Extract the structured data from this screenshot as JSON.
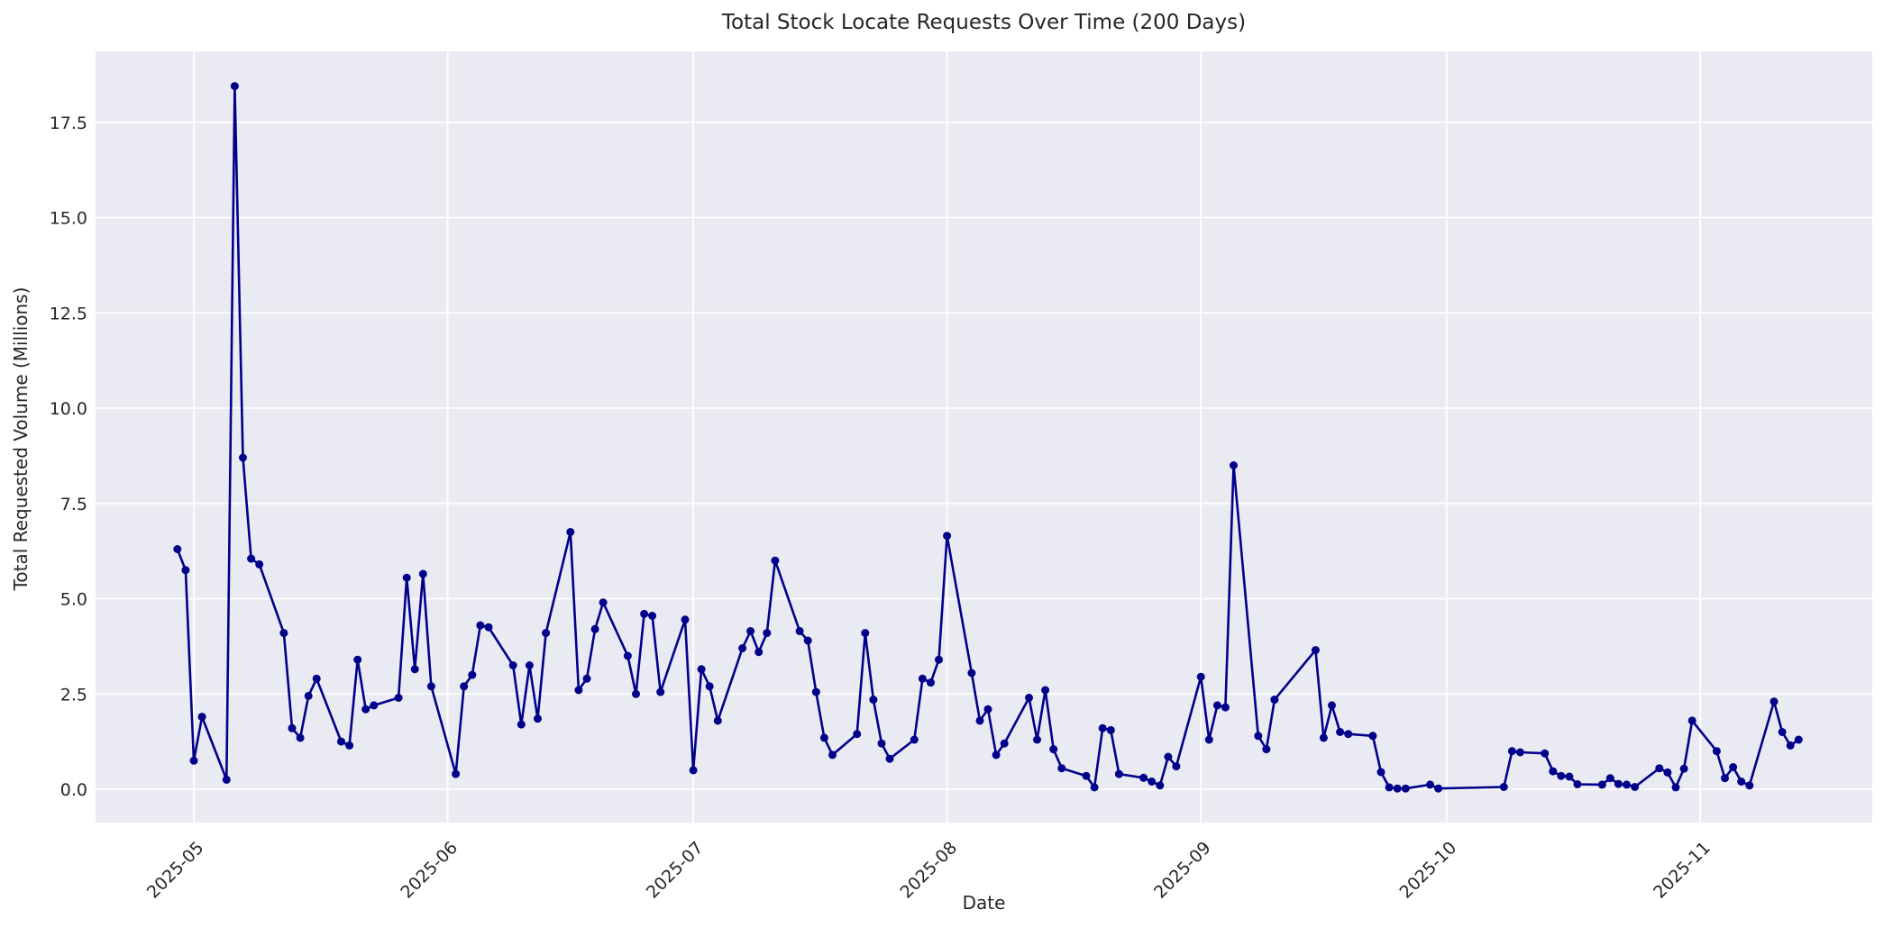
{
  "figure": {
    "background": "#ffffff",
    "title": "Total Stock Locate Requests Over Time (200 Days)",
    "xlabel": "Date",
    "ylabel": "Total Requested Volume (Millions)"
  },
  "chart_data": {
    "type": "line",
    "title": "Total Stock Locate Requests Over Time (200 Days)",
    "xlabel": "Date",
    "ylabel": "Total Requested Volume (Millions)",
    "legend": "none",
    "grid": true,
    "style": "seaborn-darkgrid",
    "colors": {
      "line": "#00008B",
      "marker": "#00008B",
      "axes_background": "#EAEAF2",
      "gridline": "#FFFFFF",
      "text": "#262626"
    },
    "ylim": [
      -0.9,
      19.4
    ],
    "xlim": [
      "2025-04-19",
      "2025-11-22"
    ],
    "y_ticks": [
      0.0,
      2.5,
      5.0,
      7.5,
      10.0,
      12.5,
      15.0,
      17.5
    ],
    "x_ticks": [
      {
        "date": "2025-05-01",
        "label": "2025-05"
      },
      {
        "date": "2025-06-01",
        "label": "2025-06"
      },
      {
        "date": "2025-07-01",
        "label": "2025-07"
      },
      {
        "date": "2025-08-01",
        "label": "2025-08"
      },
      {
        "date": "2025-09-01",
        "label": "2025-09"
      },
      {
        "date": "2025-10-01",
        "label": "2025-10"
      },
      {
        "date": "2025-11-01",
        "label": "2025-11"
      }
    ],
    "series": [
      {
        "name": "total-locate-requests",
        "points": [
          [
            "2025-04-29",
            6.3
          ],
          [
            "2025-04-30",
            5.75
          ],
          [
            "2025-05-01",
            0.75
          ],
          [
            "2025-05-02",
            1.9
          ],
          [
            "2025-05-05",
            0.25
          ],
          [
            "2025-05-06",
            18.45
          ],
          [
            "2025-05-07",
            8.7
          ],
          [
            "2025-05-08",
            6.05
          ],
          [
            "2025-05-09",
            5.9
          ],
          [
            "2025-05-12",
            4.1
          ],
          [
            "2025-05-13",
            1.6
          ],
          [
            "2025-05-14",
            1.35
          ],
          [
            "2025-05-15",
            2.45
          ],
          [
            "2025-05-16",
            2.9
          ],
          [
            "2025-05-19",
            1.25
          ],
          [
            "2025-05-20",
            1.15
          ],
          [
            "2025-05-21",
            3.4
          ],
          [
            "2025-05-22",
            2.1
          ],
          [
            "2025-05-23",
            2.2
          ],
          [
            "2025-05-26",
            2.4
          ],
          [
            "2025-05-27",
            5.55
          ],
          [
            "2025-05-28",
            3.15
          ],
          [
            "2025-05-29",
            5.65
          ],
          [
            "2025-05-30",
            2.7
          ],
          [
            "2025-06-02",
            0.4
          ],
          [
            "2025-06-03",
            2.7
          ],
          [
            "2025-06-04",
            3.0
          ],
          [
            "2025-06-05",
            4.3
          ],
          [
            "2025-06-06",
            4.25
          ],
          [
            "2025-06-09",
            3.25
          ],
          [
            "2025-06-10",
            1.7
          ],
          [
            "2025-06-11",
            3.25
          ],
          [
            "2025-06-12",
            1.85
          ],
          [
            "2025-06-13",
            4.1
          ],
          [
            "2025-06-16",
            6.75
          ],
          [
            "2025-06-17",
            2.6
          ],
          [
            "2025-06-18",
            2.9
          ],
          [
            "2025-06-19",
            4.2
          ],
          [
            "2025-06-20",
            4.9
          ],
          [
            "2025-06-23",
            3.5
          ],
          [
            "2025-06-24",
            2.5
          ],
          [
            "2025-06-25",
            4.6
          ],
          [
            "2025-06-26",
            4.55
          ],
          [
            "2025-06-27",
            2.55
          ],
          [
            "2025-06-30",
            4.45
          ],
          [
            "2025-07-01",
            0.5
          ],
          [
            "2025-07-02",
            3.15
          ],
          [
            "2025-07-03",
            2.7
          ],
          [
            "2025-07-04",
            1.8
          ],
          [
            "2025-07-07",
            3.7
          ],
          [
            "2025-07-08",
            4.15
          ],
          [
            "2025-07-09",
            3.6
          ],
          [
            "2025-07-10",
            4.1
          ],
          [
            "2025-07-11",
            6.0
          ],
          [
            "2025-07-14",
            4.15
          ],
          [
            "2025-07-15",
            3.9
          ],
          [
            "2025-07-16",
            2.55
          ],
          [
            "2025-07-17",
            1.35
          ],
          [
            "2025-07-18",
            0.9
          ],
          [
            "2025-07-21",
            1.45
          ],
          [
            "2025-07-22",
            4.1
          ],
          [
            "2025-07-23",
            2.35
          ],
          [
            "2025-07-24",
            1.2
          ],
          [
            "2025-07-25",
            0.8
          ],
          [
            "2025-07-28",
            1.3
          ],
          [
            "2025-07-29",
            2.9
          ],
          [
            "2025-07-30",
            2.8
          ],
          [
            "2025-07-31",
            3.4
          ],
          [
            "2025-08-01",
            6.65
          ],
          [
            "2025-08-04",
            3.05
          ],
          [
            "2025-08-05",
            1.8
          ],
          [
            "2025-08-06",
            2.1
          ],
          [
            "2025-08-07",
            0.9
          ],
          [
            "2025-08-08",
            1.2
          ],
          [
            "2025-08-11",
            2.4
          ],
          [
            "2025-08-12",
            1.3
          ],
          [
            "2025-08-13",
            2.6
          ],
          [
            "2025-08-14",
            1.05
          ],
          [
            "2025-08-15",
            0.55
          ],
          [
            "2025-08-18",
            0.35
          ],
          [
            "2025-08-19",
            0.05
          ],
          [
            "2025-08-20",
            1.6
          ],
          [
            "2025-08-21",
            1.55
          ],
          [
            "2025-08-22",
            0.4
          ],
          [
            "2025-08-25",
            0.3
          ],
          [
            "2025-08-26",
            0.2
          ],
          [
            "2025-08-27",
            0.1
          ],
          [
            "2025-08-28",
            0.85
          ],
          [
            "2025-08-29",
            0.6
          ],
          [
            "2025-09-01",
            2.95
          ],
          [
            "2025-09-02",
            1.3
          ],
          [
            "2025-09-03",
            2.2
          ],
          [
            "2025-09-04",
            2.15
          ],
          [
            "2025-09-05",
            8.5
          ],
          [
            "2025-09-08",
            1.4
          ],
          [
            "2025-09-09",
            1.05
          ],
          [
            "2025-09-10",
            2.35
          ],
          [
            "2025-09-15",
            3.65
          ],
          [
            "2025-09-16",
            1.35
          ],
          [
            "2025-09-17",
            2.2
          ],
          [
            "2025-09-18",
            1.5
          ],
          [
            "2025-09-19",
            1.45
          ],
          [
            "2025-09-22",
            1.4
          ],
          [
            "2025-09-23",
            0.45
          ],
          [
            "2025-09-24",
            0.05
          ],
          [
            "2025-09-25",
            0.02
          ],
          [
            "2025-09-26",
            0.02
          ],
          [
            "2025-09-29",
            0.12
          ],
          [
            "2025-09-30",
            0.02
          ],
          [
            "2025-10-08",
            0.06
          ],
          [
            "2025-10-09",
            1.0
          ],
          [
            "2025-10-10",
            0.97
          ],
          [
            "2025-10-13",
            0.94
          ],
          [
            "2025-10-14",
            0.47
          ],
          [
            "2025-10-15",
            0.35
          ],
          [
            "2025-10-16",
            0.33
          ],
          [
            "2025-10-17",
            0.13
          ],
          [
            "2025-10-20",
            0.12
          ],
          [
            "2025-10-21",
            0.29
          ],
          [
            "2025-10-22",
            0.14
          ],
          [
            "2025-10-23",
            0.12
          ],
          [
            "2025-10-24",
            0.06
          ],
          [
            "2025-10-27",
            0.55
          ],
          [
            "2025-10-28",
            0.44
          ],
          [
            "2025-10-29",
            0.05
          ],
          [
            "2025-10-30",
            0.54
          ],
          [
            "2025-10-31",
            1.8
          ],
          [
            "2025-11-03",
            1.0
          ],
          [
            "2025-11-04",
            0.29
          ],
          [
            "2025-11-05",
            0.58
          ],
          [
            "2025-11-06",
            0.2
          ],
          [
            "2025-11-07",
            0.1
          ],
          [
            "2025-11-10",
            2.3
          ],
          [
            "2025-11-11",
            1.5
          ],
          [
            "2025-11-12",
            1.15
          ],
          [
            "2025-11-13",
            1.3
          ]
        ]
      }
    ]
  }
}
